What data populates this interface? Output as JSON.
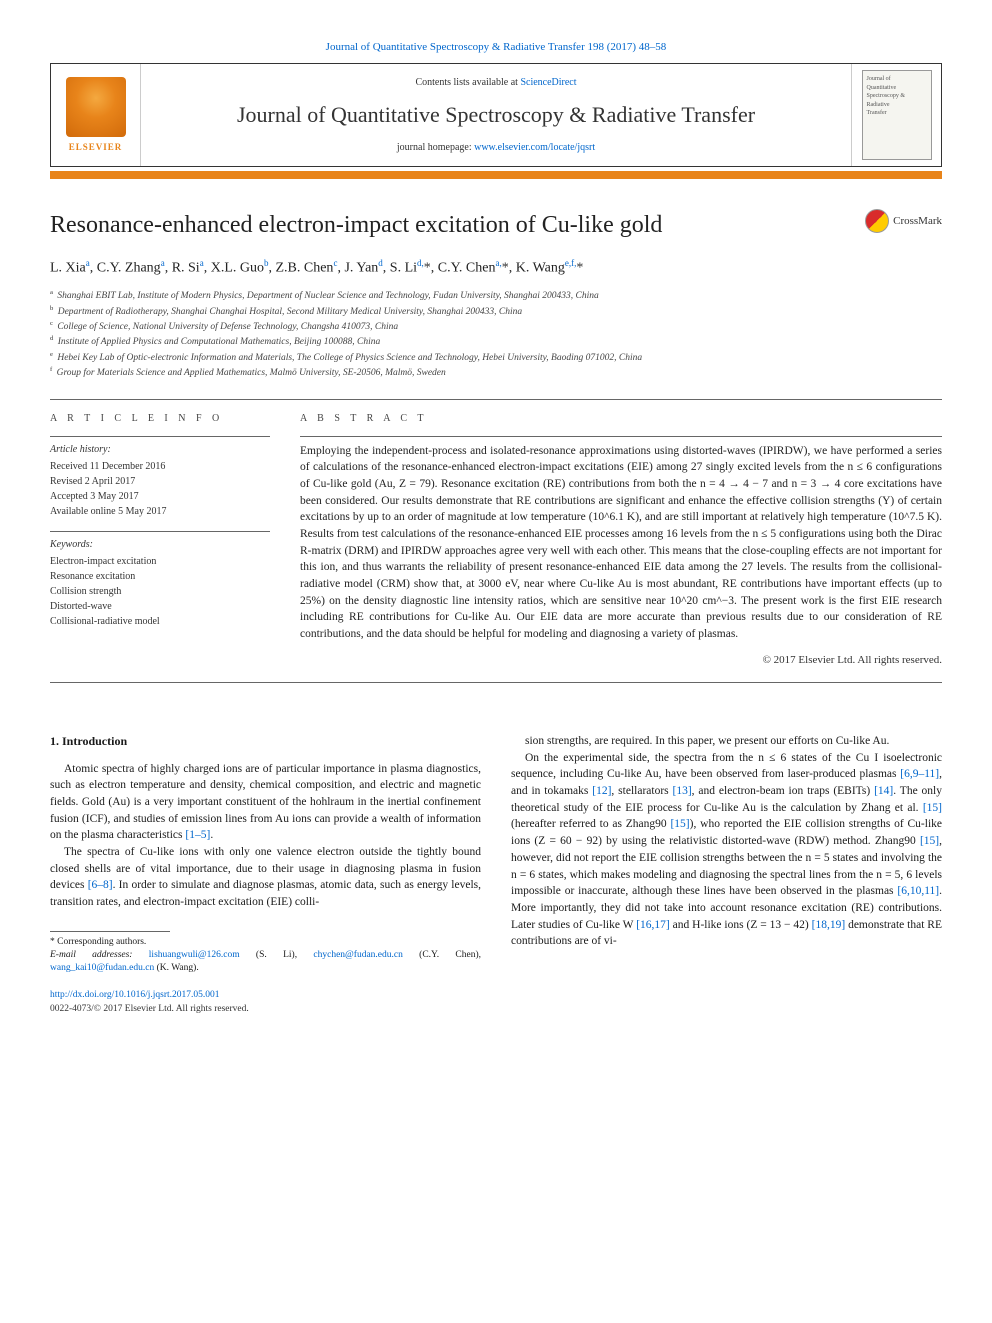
{
  "top_link": {
    "prefix": "",
    "text": "Journal of Quantitative Spectroscopy & Radiative Transfer 198 (2017) 48–58"
  },
  "header": {
    "elsevier_label": "ELSEVIER",
    "contents_prefix": "Contents lists available at ",
    "contents_link": "ScienceDirect",
    "journal_name": "Journal of Quantitative Spectroscopy & Radiative Transfer",
    "homepage_prefix": "journal homepage: ",
    "homepage_link": "www.elsevier.com/locate/jqsrt",
    "cover_lines": [
      "Journal of",
      "Quantitative",
      "Spectroscopy &",
      "Radiative",
      "Transfer"
    ]
  },
  "colors": {
    "accent_orange": "#e8841a",
    "link_blue": "#0066cc",
    "text": "#1a1a1a",
    "rule": "#666666"
  },
  "article": {
    "title": "Resonance-enhanced electron-impact excitation of Cu-like gold",
    "crossmark_label": "CrossMark",
    "authors_html": "L. Xia<sup>a</sup>, C.Y. Zhang<sup>a</sup>, R. Si<sup>a</sup>, X.L. Guo<sup>b</sup>, Z.B. Chen<sup>c</sup>, J. Yan<sup>d</sup>, S. Li<sup>d,</sup><span class='corr'>*</span>, C.Y. Chen<sup>a,</sup><span class='corr'>*</span>, K. Wang<sup>e,f,</sup><span class='corr'>*</span>",
    "affiliations": [
      {
        "sup": "a",
        "text": "Shanghai EBIT Lab, Institute of Modern Physics, Department of Nuclear Science and Technology, Fudan University, Shanghai 200433, China"
      },
      {
        "sup": "b",
        "text": "Department of Radiotherapy, Shanghai Changhai Hospital, Second Military Medical University, Shanghai 200433, China"
      },
      {
        "sup": "c",
        "text": "College of Science, National University of Defense Technology, Changsha 410073, China"
      },
      {
        "sup": "d",
        "text": "Institute of Applied Physics and Computational Mathematics, Beijing 100088, China"
      },
      {
        "sup": "e",
        "text": "Hebei Key Lab of Optic-electronic Information and Materials, The College of Physics Science and Technology, Hebei University, Baoding 071002, China"
      },
      {
        "sup": "f",
        "text": "Group for Materials Science and Applied Mathematics, Malmö University, SE-20506, Malmö, Sweden"
      }
    ]
  },
  "info": {
    "heading": "A R T I C L E   I N F O",
    "history_label": "Article history:",
    "history": [
      "Received 11 December 2016",
      "Revised 2 April 2017",
      "Accepted 3 May 2017",
      "Available online 5 May 2017"
    ],
    "keywords_label": "Keywords:",
    "keywords": [
      "Electron-impact excitation",
      "Resonance excitation",
      "Collision strength",
      "Distorted-wave",
      "Collisional-radiative model"
    ]
  },
  "abstract": {
    "heading": "A B S T R A C T",
    "text": "Employing the independent-process and isolated-resonance approximations using distorted-waves (IPIRDW), we have performed a series of calculations of the resonance-enhanced electron-impact excitations (EIE) among 27 singly excited levels from the n ≤ 6 configurations of Cu-like gold (Au, Z = 79). Resonance excitation (RE) contributions from both the n = 4 → 4 − 7 and n = 3 → 4 core excitations have been considered. Our results demonstrate that RE contributions are significant and enhance the effective collision strengths (Υ) of certain excitations by up to an order of magnitude at low temperature (10^6.1 K), and are still important at relatively high temperature (10^7.5 K). Results from test calculations of the resonance-enhanced EIE processes among 16 levels from the n ≤ 5 configurations using both the Dirac R-matrix (DRM) and IPIRDW approaches agree very well with each other. This means that the close-coupling effects are not important for this ion, and thus warrants the reliability of present resonance-enhanced EIE data among the 27 levels. The results from the collisional-radiative model (CRM) show that, at 3000 eV, near where Cu-like Au is most abundant, RE contributions have important effects (up to 25%) on the density diagnostic line intensity ratios, which are sensitive near 10^20 cm^−3. The present work is the first EIE research including RE contributions for Cu-like Au. Our EIE data are more accurate than previous results due to our consideration of RE contributions, and the data should be helpful for modeling and diagnosing a variety of plasmas.",
    "copyright": "© 2017 Elsevier Ltd. All rights reserved."
  },
  "body": {
    "section_heading": "1. Introduction",
    "col1_paras": [
      "Atomic spectra of highly charged ions are of particular importance in plasma diagnostics, such as electron temperature and density, chemical composition, and electric and magnetic fields. Gold (Au) is a very important constituent of the hohlraum in the inertial confinement fusion (ICF), and studies of emission lines from Au ions can provide a wealth of information on the plasma characteristics <span class='ref'>[1–5]</span>.",
      "The spectra of Cu-like ions with only one valence electron outside the tightly bound closed shells are of vital importance, due to their usage in diagnosing plasma in fusion devices <span class='ref'>[6–8]</span>. In order to simulate and diagnose plasmas, atomic data, such as energy levels, transition rates, and electron-impact excitation (EIE) colli-"
    ],
    "col2_paras": [
      "sion strengths, are required. In this paper, we present our efforts on Cu-like Au.",
      "On the experimental side, the spectra from the n ≤ 6 states of the Cu I isoelectronic sequence, including Cu-like Au, have been observed from laser-produced plasmas <span class='ref'>[6,9–11]</span>, and in tokamaks <span class='ref'>[12]</span>, stellarators <span class='ref'>[13]</span>, and electron-beam ion traps (EBITs) <span class='ref'>[14]</span>. The only theoretical study of the EIE process for Cu-like Au is the calculation by Zhang et al. <span class='ref'>[15]</span> (hereafter referred to as Zhang90 <span class='ref'>[15]</span>), who reported the EIE collision strengths of Cu-like ions (Z = 60 − 92) by using the relativistic distorted-wave (RDW) method. Zhang90 <span class='ref'>[15]</span>, however, did not report the EIE collision strengths between the n = 5 states and involving the n = 6 states, which makes modeling and diagnosing the spectral lines from the n = 5, 6 levels impossible or inaccurate, although these lines have been observed in the plasmas <span class='ref'>[6,10,11]</span>. More importantly, they did not take into account resonance excitation (RE) contributions. Later studies of Cu-like W <span class='ref'>[16,17]</span> and H-like ions (Z = 13 − 42) <span class='ref'>[18,19]</span> demonstrate that RE contributions are of vi-"
    ]
  },
  "footnotes": {
    "corr_label": "* Corresponding authors.",
    "email_label": "E-mail addresses:",
    "emails": [
      {
        "addr": "lishuangwuli@126.com",
        "who": "(S. Li)"
      },
      {
        "addr": "chychen@fudan.edu.cn",
        "who": "(C.Y. Chen)"
      },
      {
        "addr": "wang_kai10@fudan.edu.cn",
        "who": "(K. Wang)"
      }
    ]
  },
  "footer": {
    "doi": "http://dx.doi.org/10.1016/j.jqsrt.2017.05.001",
    "issn_line": "0022-4073/© 2017 Elsevier Ltd. All rights reserved."
  }
}
